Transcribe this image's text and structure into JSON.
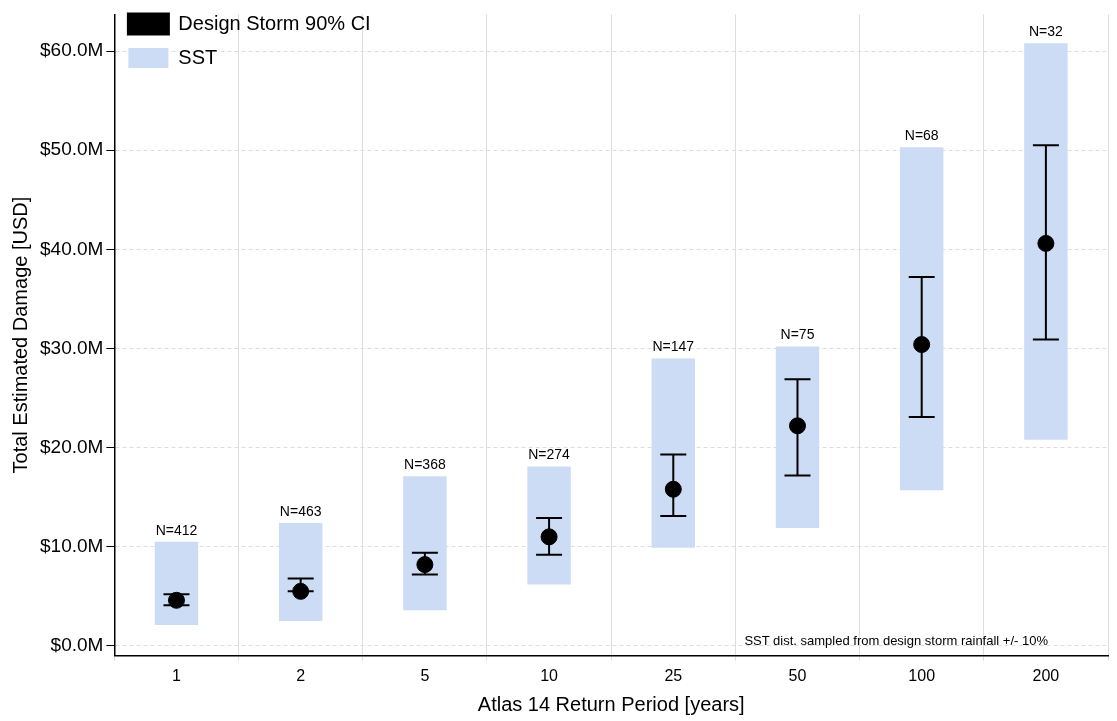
{
  "chart_data": {
    "type": "scatter",
    "xlabel": "Atlas 14 Return Period [years]",
    "ylabel": "Total Estimated Damage [USD]",
    "categories": [
      "1",
      "2",
      "5",
      "10",
      "25",
      "50",
      "100",
      "200"
    ],
    "series": [
      {
        "name": "Design Storm 90% CI",
        "color": "#000000",
        "marker": "circle",
        "values": [
          4.6,
          5.5,
          8.2,
          11.0,
          15.8,
          22.2,
          30.4,
          40.6
        ],
        "errors": [
          [
            4.1,
            5.2
          ],
          [
            5.5,
            6.8
          ],
          [
            7.2,
            9.4
          ],
          [
            9.2,
            12.9
          ],
          [
            13.1,
            19.3
          ],
          [
            17.2,
            26.9
          ],
          [
            23.1,
            37.2
          ],
          [
            30.9,
            50.5
          ]
        ]
      },
      {
        "name": "SST",
        "type": "bar",
        "color": "#cddcf5",
        "base": [
          2.1,
          2.5,
          3.6,
          6.2,
          9.9,
          11.9,
          15.7,
          20.8
        ],
        "values": [
          8.4,
          9.9,
          13.5,
          11.9,
          19.1,
          18.3,
          34.6,
          40.0
        ]
      }
    ],
    "ylim": [
      -1.0,
      63.7
    ],
    "yticks": [
      {
        "value": 0,
        "label": "$0.0M"
      },
      {
        "value": 10,
        "label": "$10.0M"
      },
      {
        "value": 20,
        "label": "$20.0M"
      },
      {
        "value": 30,
        "label": "$30.0M"
      },
      {
        "value": 40,
        "label": "$40.0M"
      },
      {
        "value": 50,
        "label": "$50.0M"
      },
      {
        "value": 60,
        "label": "$60.0M"
      }
    ],
    "grid": true,
    "legend": "top left",
    "annotations": [
      {
        "text": "N=412",
        "x": "1",
        "y": 10.5
      },
      {
        "text": "N=463",
        "x": "2",
        "y": 12.4
      },
      {
        "text": "N=368",
        "x": "5",
        "y": 17.1
      },
      {
        "text": "N=274",
        "x": "10",
        "y": 18.1
      },
      {
        "text": "N=147",
        "x": "25",
        "y": 29.0
      },
      {
        "text": "N=75",
        "x": "50",
        "y": 30.2
      },
      {
        "text": "N=68",
        "x": "100",
        "y": 50.3
      },
      {
        "text": "N=32",
        "x": "200",
        "y": 60.8
      },
      "SST dist. sampled from design storm rainfall +/- 10%"
    ]
  }
}
